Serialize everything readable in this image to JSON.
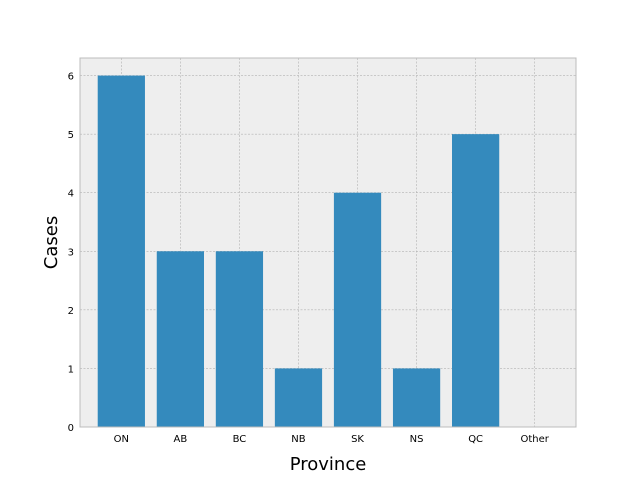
{
  "chart_data": {
    "type": "bar",
    "title": "",
    "xlabel": "Province",
    "ylabel": "Cases",
    "categories": [
      "ON",
      "AB",
      "BC",
      "NB",
      "SK",
      "NS",
      "QC",
      "Other"
    ],
    "values": [
      6,
      3,
      3,
      1,
      4,
      1,
      5,
      0
    ],
    "ylim": [
      0,
      6.3
    ],
    "yticks": [
      0,
      1,
      2,
      3,
      4,
      5,
      6
    ],
    "grid": true,
    "legend": "none",
    "style": "bmh",
    "colors": {
      "bar": "#348abd",
      "plot_background": "#eeeeee",
      "grid": "#b2b2b2",
      "frame": "#bcbcbc"
    }
  }
}
